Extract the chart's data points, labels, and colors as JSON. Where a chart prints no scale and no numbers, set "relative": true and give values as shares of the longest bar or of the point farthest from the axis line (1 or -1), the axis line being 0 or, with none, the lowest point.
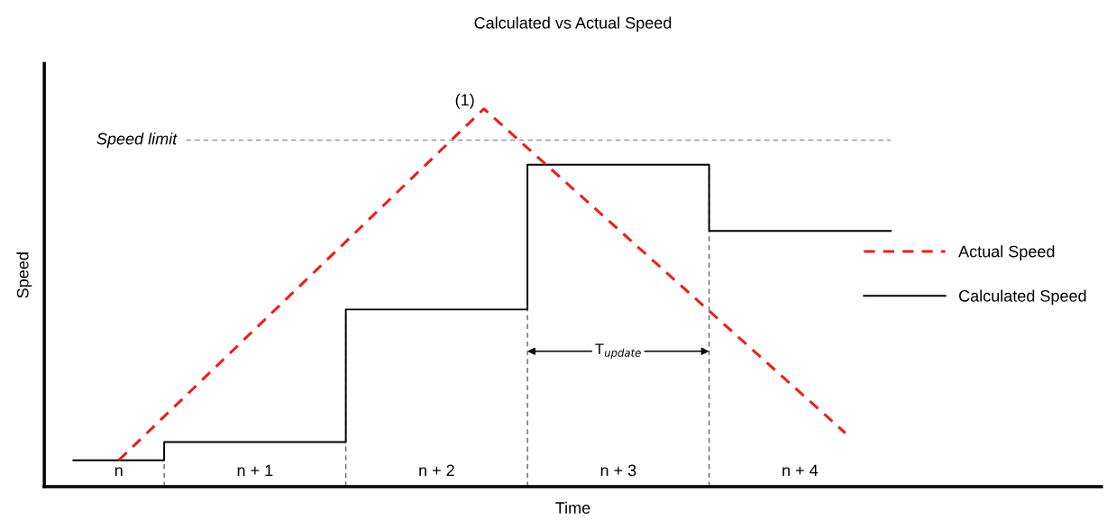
{
  "chart_data": {
    "type": "line",
    "title": "Calculated vs Actual Speed",
    "xlabel": "Time",
    "ylabel": "Speed",
    "relative": true,
    "xlim": [
      0.34,
      6.16
    ],
    "xticks": [
      {
        "value": 0.75,
        "label": "n"
      },
      {
        "value": 1.5,
        "label": "n + 1"
      },
      {
        "value": 2.5,
        "label": "n + 2"
      },
      {
        "value": 3.5,
        "label": "n + 3"
      },
      {
        "value": 4.5,
        "label": "n + 4"
      }
    ],
    "series": [
      {
        "name": "Actual Speed",
        "line_style": "dashed",
        "color": "#e8211d",
        "x": [
          0.75,
          2.76,
          4.75
        ],
        "values": [
          0.07,
          1,
          0.142
        ]
      },
      {
        "name": "Calculated Speed",
        "type": "step",
        "line_style": "solid",
        "color": "#000000",
        "x": [
          0.5,
          1,
          2,
          3,
          4,
          5
        ],
        "values": [
          0.07,
          0.118,
          0.469,
          0.852,
          0.677,
          0.677
        ]
      }
    ],
    "ref_lines": [
      {
        "axis": "y",
        "value": 0.917,
        "label": "Speed limit",
        "color": "#999999",
        "line_style": "dashed"
      },
      {
        "axis": "x",
        "value": 1,
        "color": "#666666",
        "line_style": "dashed"
      },
      {
        "axis": "x",
        "value": 2,
        "color": "#666666",
        "line_style": "dashed"
      },
      {
        "axis": "x",
        "value": 3,
        "color": "#666666",
        "line_style": "dashed"
      },
      {
        "axis": "x",
        "value": 4,
        "color": "#666666",
        "line_style": "dashed"
      }
    ],
    "annotations": [
      {
        "text": "(1)",
        "x": 2.76,
        "y": 1
      },
      "T$_{update}$"
    ],
    "legend": "right",
    "grid": false,
    "marker": "none"
  }
}
